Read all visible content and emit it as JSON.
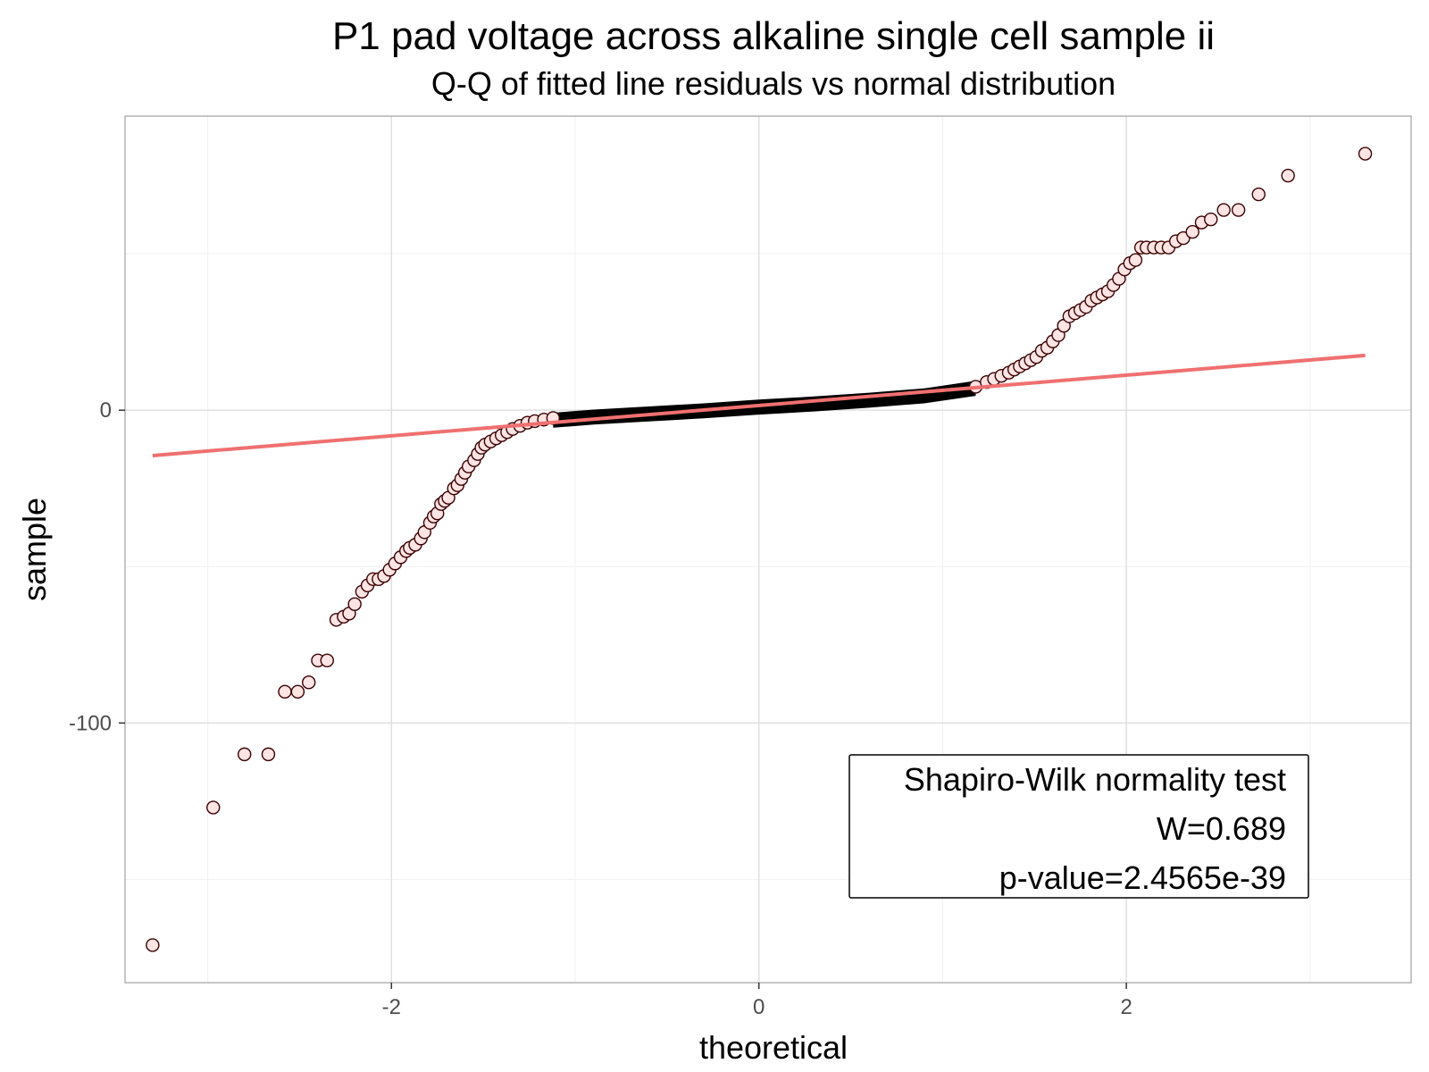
{
  "chart_data": {
    "type": "scatter",
    "title": "P1 pad voltage across alkaline single cell sample ii",
    "subtitle": "Q-Q of fitted line residuals vs normal distribution",
    "xlabel": "theoretical",
    "ylabel": "sample",
    "xlim": [
      -3.45,
      3.55
    ],
    "ylim": [
      -183,
      94
    ],
    "x_ticks": [
      -2,
      0,
      2
    ],
    "x_tick_labels": [
      "-2",
      "0",
      "2"
    ],
    "y_ticks": [
      -100,
      0
    ],
    "y_tick_labels": [
      "-100",
      "0"
    ],
    "grid": true,
    "point_color": "#ffe4e4",
    "point_edge_color": "#3a0000",
    "line_color": "#f07070",
    "reference_line": {
      "x": [
        -3.3,
        3.3
      ],
      "y": [
        -14.5,
        17.5
      ]
    },
    "series": [
      {
        "x": [
          -3.3,
          -2.97,
          -2.8,
          -2.67,
          -2.58,
          -2.51,
          -2.45,
          -2.4,
          -2.35,
          -2.3,
          -2.26,
          -2.23,
          -2.2,
          -2.16,
          -2.13,
          -2.1,
          -2.07,
          -2.04,
          -2.01,
          -1.98,
          -1.95,
          -1.92,
          -1.9,
          -1.87,
          -1.84,
          -1.82,
          -1.79,
          -1.77,
          -1.75,
          -1.73,
          -1.71,
          -1.69,
          -1.66,
          -1.64,
          -1.62,
          -1.6,
          -1.58,
          -1.55,
          -1.53,
          -1.51,
          -1.49,
          -1.46,
          -1.43,
          -1.4,
          -1.37,
          -1.34,
          -1.3,
          -1.26,
          -1.22,
          -1.17,
          -1.12,
          1.18,
          1.24,
          1.28,
          1.32,
          1.36,
          1.39,
          1.42,
          1.45,
          1.48,
          1.51,
          1.54,
          1.57,
          1.6,
          1.63,
          1.66,
          1.69,
          1.72,
          1.75,
          1.78,
          1.81,
          1.84,
          1.87,
          1.9,
          1.93,
          1.96,
          1.99,
          2.02,
          2.05,
          2.08,
          2.11,
          2.15,
          2.19,
          2.23,
          2.27,
          2.31,
          2.36,
          2.41,
          2.46,
          2.53,
          2.61,
          2.72,
          2.88,
          3.3
        ],
        "y": [
          -171,
          -127,
          -110,
          -110,
          -90,
          -90,
          -87,
          -80,
          -80,
          -67,
          -66,
          -65,
          -62,
          -58,
          -56,
          -54,
          -54,
          -53,
          -51,
          -49,
          -47,
          -45,
          -44,
          -43,
          -41,
          -39,
          -36,
          -34,
          -33,
          -30,
          -29,
          -28,
          -25,
          -24,
          -22,
          -20,
          -18,
          -16,
          -14,
          -12,
          -11,
          -10,
          -9,
          -8,
          -7,
          -6,
          -5,
          -4,
          -3.5,
          -3,
          -2.5,
          7.5,
          9,
          10,
          11,
          12,
          13,
          14,
          15,
          16,
          17,
          19,
          20,
          22,
          24,
          27,
          30,
          31,
          32,
          33,
          35,
          36,
          37,
          38,
          40,
          42,
          45,
          47,
          48,
          52,
          52,
          52,
          52,
          52,
          54,
          55,
          57,
          60,
          61,
          64,
          64,
          69,
          75,
          82
        ]
      }
    ],
    "dense_band": {
      "x_start": -1.12,
      "x_end": 1.18,
      "points": [
        [
          -1.12,
          -3.2
        ],
        [
          -0.9,
          -2.2
        ],
        [
          -0.6,
          -1.2
        ],
        [
          -0.3,
          -0.2
        ],
        [
          0.0,
          1.0
        ],
        [
          0.3,
          2.0
        ],
        [
          0.6,
          3.2
        ],
        [
          0.9,
          4.6
        ],
        [
          1.18,
          7.0
        ]
      ],
      "half_height": 2.4
    },
    "annotation": {
      "lines": [
        "Shapiro-Wilk normality test",
        "W=0.689",
        "p-value=2.4565e-39"
      ]
    }
  }
}
